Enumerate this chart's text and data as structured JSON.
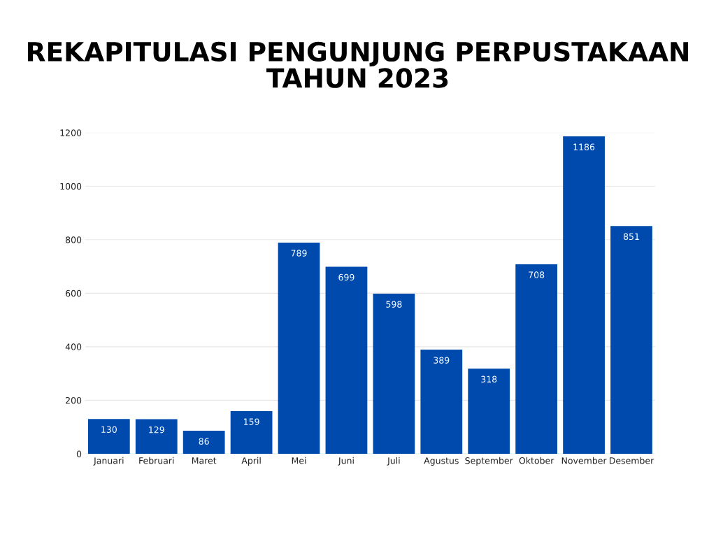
{
  "chart_data": {
    "type": "bar",
    "title": "REKAPITULASI PENGUNJUNG PERPUSTAKAAN\nTAHUN 2023",
    "categories": [
      "Januari",
      "Februari",
      "Maret",
      "April",
      "Mei",
      "Juni",
      "Juli",
      "Agustus",
      "September",
      "Oktober",
      "November",
      "Desember"
    ],
    "values": [
      130,
      129,
      86,
      159,
      789,
      699,
      598,
      389,
      318,
      708,
      1186,
      851
    ],
    "color": "#004aad",
    "ylim": [
      0,
      1200
    ],
    "yticks": [
      0,
      200,
      400,
      600,
      800,
      1000,
      1200
    ],
    "grid": "y",
    "data_labels": true
  }
}
